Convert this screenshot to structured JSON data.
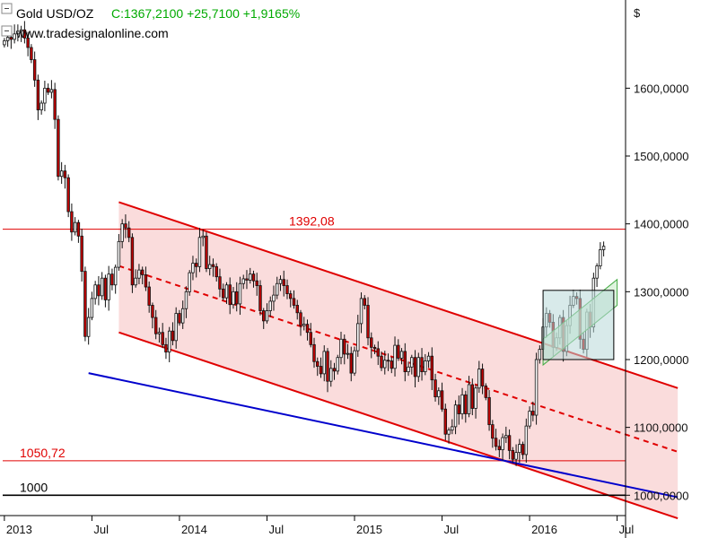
{
  "header": {
    "instrument": "Gold USD/OZ",
    "quote": "C:1367,2100 +25,7100 +1,9165%",
    "website": "www.tradesignalonline.com"
  },
  "colors": {
    "candle_up": "#ffffff",
    "candle_down": "#c00000",
    "wick": "#111111",
    "channel_fill": "#f8d0d0",
    "channel_line": "#e00000",
    "trend_line": "#0000cc",
    "support_line": "#000000",
    "quote_text": "#00aa00",
    "box_fill": "#b8d8d8",
    "small_channel_fill": "#c8ecc8"
  },
  "chart_data": {
    "type": "candlestick",
    "title": "Gold USD/OZ",
    "yunit": "$",
    "ylim": [
      970,
      1730
    ],
    "y_ticks": [
      "1600,0000",
      "1500,0000",
      "1400,0000",
      "1300,0000",
      "1200,0000",
      "1100,0000",
      "1000,0000"
    ],
    "y_tick_values": [
      1600,
      1500,
      1400,
      1300,
      1200,
      1100,
      1000
    ],
    "x_labels": [
      "2013",
      "Jul",
      "2014",
      "Jul",
      "2015",
      "Jul",
      "2016",
      "Jul"
    ],
    "x_label_index": [
      0,
      26,
      52,
      78,
      104,
      130,
      156,
      182
    ],
    "horizontal_lines": [
      {
        "label": "1392,08",
        "value": 1392.08
      },
      {
        "label": "1050,72",
        "value": 1050.72
      },
      {
        "label": "1000",
        "value": 1000
      }
    ],
    "channel": {
      "upper": [
        [
          34,
          1432
        ],
        [
          200,
          1158
        ]
      ],
      "middle": [
        [
          34,
          1338
        ],
        [
          200,
          1064
        ]
      ],
      "lower": [
        [
          34,
          1240
        ],
        [
          200,
          966
        ]
      ]
    },
    "trend_line": [
      [
        25,
        1180
      ],
      [
        200,
        997
      ]
    ],
    "box": {
      "start": 160,
      "end": 181,
      "low": 1200,
      "high": 1302
    },
    "small_channel": {
      "upper": [
        [
          160,
          1230
        ],
        [
          182,
          1318
        ]
      ],
      "lower": [
        [
          160,
          1192
        ],
        [
          182,
          1280
        ]
      ]
    },
    "closes": [
      1670,
      1675,
      1672,
      1680,
      1684,
      1686,
      1674,
      1660,
      1642,
      1612,
      1568,
      1578,
      1600,
      1594,
      1598,
      1554,
      1470,
      1478,
      1468,
      1418,
      1388,
      1402,
      1382,
      1330,
      1234,
      1262,
      1290,
      1310,
      1294,
      1320,
      1288,
      1326,
      1310,
      1336,
      1374,
      1400,
      1394,
      1380,
      1310,
      1320,
      1332,
      1325,
      1307,
      1280,
      1262,
      1238,
      1240,
      1222,
      1211,
      1242,
      1228,
      1268,
      1254,
      1275,
      1300,
      1328,
      1342,
      1337,
      1380,
      1382,
      1334,
      1340,
      1337,
      1322,
      1304,
      1291,
      1310,
      1281,
      1300,
      1282,
      1312,
      1319,
      1317,
      1326,
      1316,
      1309,
      1272,
      1257,
      1272,
      1286,
      1295,
      1312,
      1318,
      1309,
      1297,
      1290,
      1280,
      1269,
      1250,
      1252,
      1240,
      1222,
      1197,
      1190,
      1179,
      1212,
      1168,
      1187,
      1183,
      1203,
      1230,
      1208,
      1209,
      1180,
      1213,
      1253,
      1290,
      1280,
      1232,
      1218,
      1216,
      1205,
      1188,
      1199,
      1198,
      1187,
      1221,
      1202,
      1212,
      1182,
      1189,
      1203,
      1175,
      1203,
      1182,
      1198,
      1205,
      1170,
      1145,
      1154,
      1127,
      1090,
      1096,
      1101,
      1133,
      1120,
      1148,
      1120,
      1163,
      1128,
      1158,
      1186,
      1161,
      1144,
      1104,
      1084,
      1072,
      1067,
      1085,
      1088,
      1066,
      1053,
      1063,
      1075,
      1060,
      1102,
      1124,
      1118,
      1200,
      1215,
      1248,
      1268,
      1255,
      1218,
      1232,
      1262,
      1212,
      1250,
      1280,
      1293,
      1290,
      1230,
      1215,
      1270,
      1248,
      1320,
      1338,
      1362,
      1367
    ]
  }
}
